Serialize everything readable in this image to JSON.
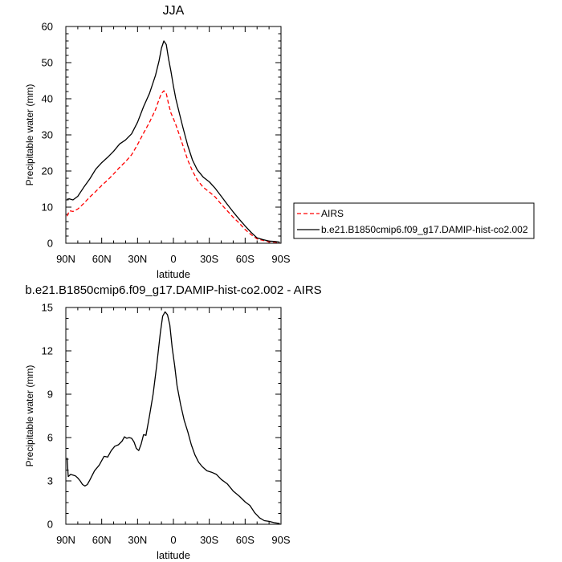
{
  "chart_data": [
    {
      "type": "line",
      "title": "JJA",
      "xlabel": "latitude",
      "ylabel": "Precipitable water (mm)",
      "xlim": [
        90,
        -90
      ],
      "ylim": [
        0,
        60
      ],
      "x_ticks": [
        90,
        60,
        30,
        0,
        -30,
        -60,
        -90
      ],
      "x_tick_labels": [
        "90N",
        "60N",
        "30N",
        "0",
        "30S",
        "60S",
        "90S"
      ],
      "y_ticks": [
        0,
        10,
        20,
        30,
        40,
        50,
        60
      ],
      "y_tick_labels": [
        "0",
        "10",
        "20",
        "30",
        "40",
        "50",
        "60"
      ],
      "grid": false,
      "legend_position": "right",
      "series": [
        {
          "name": "AIRS",
          "color": "#ff0000",
          "dash": "dashed",
          "x": [
            89,
            87,
            84,
            80,
            75,
            70,
            65,
            60,
            55,
            50,
            45,
            40,
            35,
            30,
            25,
            20,
            15,
            12,
            10,
            8,
            6,
            4,
            2,
            0,
            -2,
            -5,
            -8,
            -12,
            -16,
            -20,
            -25,
            -30,
            -35,
            -40,
            -45,
            -50,
            -55,
            -60,
            -65,
            -70,
            -75,
            -80,
            -85,
            -89
          ],
          "y": [
            7.5,
            9,
            8.8,
            9.5,
            11,
            12.8,
            14.3,
            16,
            17.5,
            19.2,
            21,
            22.6,
            24.5,
            27.3,
            30.5,
            33.5,
            37,
            39.8,
            41.5,
            42.2,
            41.5,
            38.5,
            36,
            34.5,
            32.8,
            30,
            27,
            23,
            20,
            17.5,
            15.5,
            14.2,
            12.8,
            10.8,
            9,
            7.2,
            5.6,
            3.8,
            2.4,
            1.2,
            0.8,
            0.4,
            0.3,
            0.2
          ]
        },
        {
          "name": "b.e21.B1850cmip6.f09_g17.DAMIP-hist-co2.002",
          "color": "#000000",
          "dash": "solid",
          "x": [
            89,
            87,
            84,
            80,
            75,
            70,
            65,
            60,
            55,
            50,
            45,
            40,
            35,
            30,
            25,
            20,
            15,
            12,
            10,
            8,
            6,
            4,
            2,
            0,
            -2,
            -5,
            -8,
            -12,
            -16,
            -20,
            -25,
            -30,
            -35,
            -40,
            -45,
            -50,
            -55,
            -60,
            -65,
            -70,
            -75,
            -80,
            -85,
            -89
          ],
          "y": [
            12.2,
            12.3,
            12,
            13,
            15.5,
            17.8,
            20.5,
            22.3,
            23.8,
            25.5,
            27.5,
            28.6,
            30.3,
            33.5,
            37.8,
            41.5,
            46.5,
            50.5,
            54,
            56,
            55,
            51,
            47.5,
            43.5,
            40,
            36,
            32,
            27,
            23,
            20.3,
            18.3,
            17,
            15.2,
            13,
            10.8,
            8.7,
            6.7,
            4.8,
            3,
            1.5,
            1,
            0.6,
            0.5,
            0.3
          ]
        }
      ]
    },
    {
      "type": "line",
      "title": "b.e21.B1850cmip6.f09_g17.DAMIP-hist-co2.002 - AIRS",
      "xlabel": "latitude",
      "ylabel": "Precipitable water (mm)",
      "xlim": [
        90,
        -90
      ],
      "ylim": [
        0,
        15
      ],
      "x_ticks": [
        90,
        60,
        30,
        0,
        -30,
        -60,
        -90
      ],
      "x_tick_labels": [
        "90N",
        "60N",
        "30N",
        "0",
        "30S",
        "60S",
        "90S"
      ],
      "y_ticks": [
        0,
        3,
        6,
        9,
        12,
        15
      ],
      "y_tick_labels": [
        "0",
        "3",
        "6",
        "9",
        "12",
        "15"
      ],
      "grid": false,
      "series": [
        {
          "color": "#000000",
          "dash": "solid",
          "x": [
            89,
            88,
            86,
            84,
            82,
            80,
            78,
            76,
            74,
            72,
            70,
            66,
            62,
            58,
            55,
            52,
            49,
            46,
            43,
            41,
            39,
            37,
            35,
            33,
            31,
            29,
            27,
            25,
            23,
            20,
            17,
            14,
            11,
            9,
            7,
            5,
            3,
            1,
            -1,
            -3,
            -6,
            -9,
            -12,
            -15,
            -18,
            -21,
            -24,
            -28,
            -32,
            -36,
            -40,
            -45,
            -50,
            -55,
            -60,
            -64,
            -68,
            -72,
            -76,
            -80,
            -85,
            -89
          ],
          "y": [
            4.6,
            3.3,
            3.45,
            3.4,
            3.35,
            3.2,
            3.0,
            2.75,
            2.65,
            2.75,
            3.05,
            3.7,
            4.1,
            4.7,
            4.65,
            5.1,
            5.4,
            5.5,
            5.75,
            6.05,
            5.95,
            6.0,
            5.95,
            5.7,
            5.25,
            5.1,
            5.55,
            6.2,
            6.15,
            7.5,
            9.0,
            11.0,
            13.2,
            14.4,
            14.7,
            14.5,
            13.8,
            12.2,
            11.0,
            9.6,
            8.3,
            7.2,
            6.4,
            5.5,
            4.8,
            4.3,
            4.0,
            3.7,
            3.6,
            3.45,
            3.1,
            2.8,
            2.3,
            1.95,
            1.55,
            1.3,
            0.8,
            0.45,
            0.25,
            0.2,
            0.1,
            0.05
          ]
        }
      ]
    }
  ]
}
